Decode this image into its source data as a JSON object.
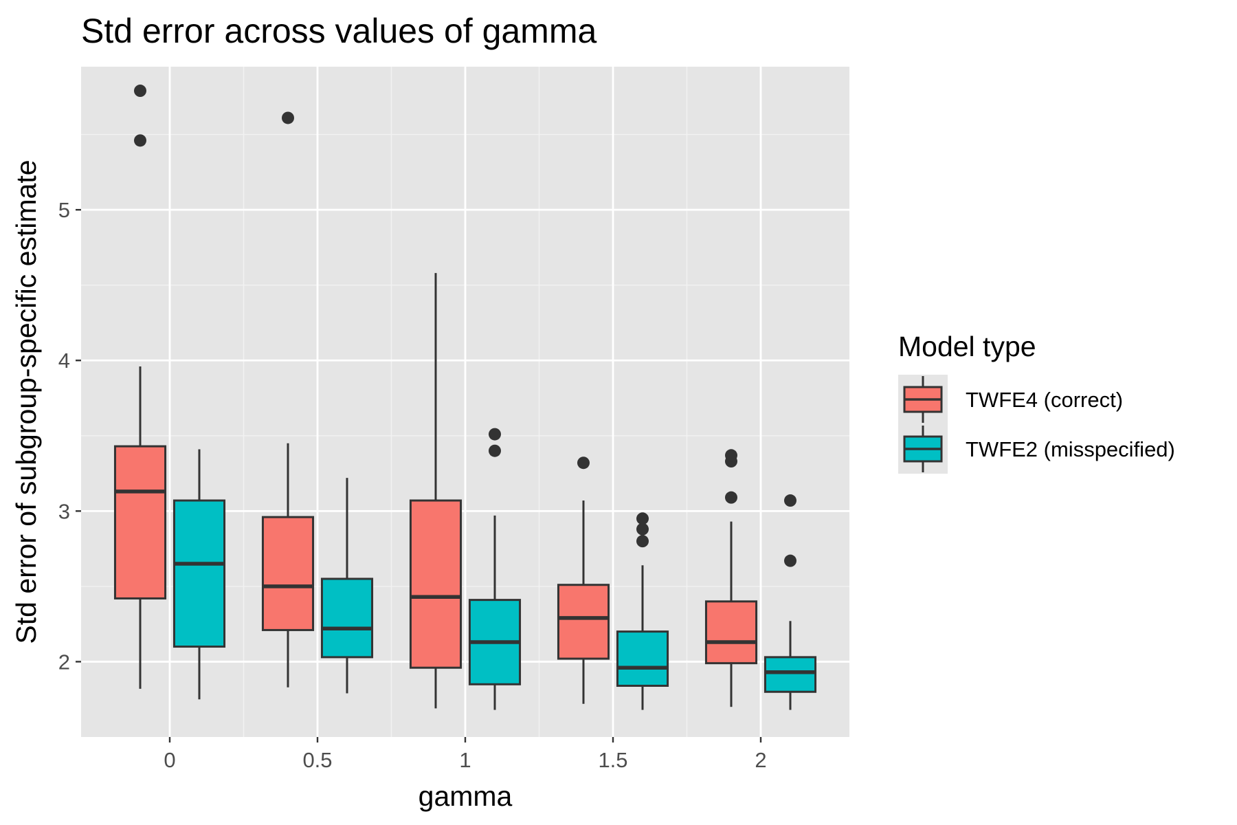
{
  "chart_data": {
    "type": "boxplot",
    "title": "Std error across values of gamma",
    "xlabel": "gamma",
    "ylabel": "Std error of subgroup-specific estimate",
    "categories": [
      "0",
      "0.5",
      "1",
      "1.5",
      "2"
    ],
    "x_values": [
      0,
      0.5,
      1,
      1.5,
      2
    ],
    "xlim": [
      -0.3,
      2.3
    ],
    "ylim": [
      1.5,
      5.95
    ],
    "y_ticks": [
      2,
      3,
      4,
      5
    ],
    "grid": true,
    "legend": {
      "title": "Model type",
      "position": "right"
    },
    "series": [
      {
        "name": "TWFE4 (correct)",
        "color": "#F8766D",
        "boxes": [
          {
            "x": "0",
            "whisker_low": 1.82,
            "q1": 2.42,
            "median": 3.13,
            "q3": 3.43,
            "whisker_high": 3.96,
            "outliers": [
              5.46,
              5.79
            ]
          },
          {
            "x": "0.5",
            "whisker_low": 1.83,
            "q1": 2.21,
            "median": 2.5,
            "q3": 2.96,
            "whisker_high": 3.45,
            "outliers": [
              5.61
            ]
          },
          {
            "x": "1",
            "whisker_low": 1.69,
            "q1": 1.96,
            "median": 2.43,
            "q3": 3.07,
            "whisker_high": 4.58,
            "outliers": []
          },
          {
            "x": "1.5",
            "whisker_low": 1.72,
            "q1": 2.02,
            "median": 2.29,
            "q3": 2.51,
            "whisker_high": 3.07,
            "outliers": [
              3.32
            ]
          },
          {
            "x": "2",
            "whisker_low": 1.7,
            "q1": 1.99,
            "median": 2.13,
            "q3": 2.4,
            "whisker_high": 2.93,
            "outliers": [
              3.09,
              3.33,
              3.37
            ]
          }
        ]
      },
      {
        "name": "TWFE2 (misspecified)",
        "color": "#00BFC4",
        "boxes": [
          {
            "x": "0",
            "whisker_low": 1.75,
            "q1": 2.1,
            "median": 2.65,
            "q3": 3.07,
            "whisker_high": 3.41,
            "outliers": []
          },
          {
            "x": "0.5",
            "whisker_low": 1.79,
            "q1": 2.03,
            "median": 2.22,
            "q3": 2.55,
            "whisker_high": 3.22,
            "outliers": []
          },
          {
            "x": "1",
            "whisker_low": 1.68,
            "q1": 1.85,
            "median": 2.13,
            "q3": 2.41,
            "whisker_high": 2.97,
            "outliers": [
              3.4,
              3.51
            ]
          },
          {
            "x": "1.5",
            "whisker_low": 1.68,
            "q1": 1.84,
            "median": 1.96,
            "q3": 2.2,
            "whisker_high": 2.64,
            "outliers": [
              2.8,
              2.88,
              2.95
            ]
          },
          {
            "x": "2",
            "whisker_low": 1.68,
            "q1": 1.8,
            "median": 1.93,
            "q3": 2.03,
            "whisker_high": 2.27,
            "outliers": [
              2.67,
              3.07
            ]
          }
        ]
      }
    ]
  }
}
